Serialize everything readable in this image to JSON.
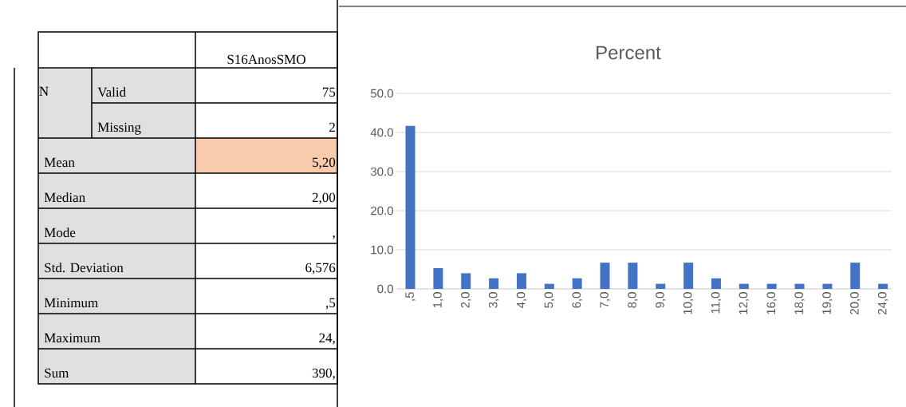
{
  "chart_data": [
    {
      "type": "other",
      "annotations": [
        "S16AnosSMO",
        "N",
        "Valid",
        "75",
        "Missing",
        "2",
        "Mean",
        "5,20",
        "Median",
        "2,00",
        "Mode",
        ",",
        "Std. Deviation",
        "6,576",
        "Minimum",
        ",5",
        "Maximum",
        "24,",
        "Sum",
        "390,"
      ]
    },
    {
      "type": "bar",
      "title": "Percent",
      "categories": [
        ",5",
        "1,0",
        "2,0",
        "3,0",
        "4,0",
        "5,0",
        "6,0",
        "7,0",
        "8,0",
        "9,0",
        "10,0",
        "11,0",
        "12,0",
        "16,0",
        "18,0",
        "19,0",
        "20,0",
        "24,0"
      ],
      "values": [
        41.7,
        5.3,
        4.0,
        2.7,
        4.0,
        1.3,
        2.7,
        6.7,
        6.7,
        1.3,
        6.7,
        2.7,
        1.3,
        1.3,
        1.3,
        1.3,
        6.7,
        1.3
      ],
      "color": "#4472c4",
      "ylim": [
        0,
        50
      ],
      "yticks": [
        {
          "value": 0,
          "label": "0.0"
        },
        {
          "value": 10,
          "label": "10.0"
        },
        {
          "value": 20,
          "label": "20.0"
        },
        {
          "value": 30,
          "label": "30.0"
        },
        {
          "value": 40,
          "label": "40.0"
        },
        {
          "value": 50,
          "label": "50.0"
        }
      ],
      "grid": "y"
    }
  ]
}
